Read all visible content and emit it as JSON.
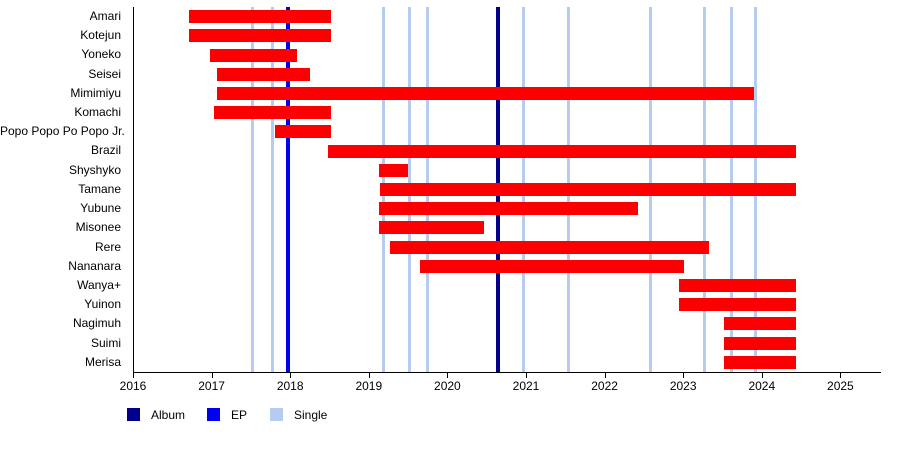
{
  "legend": {
    "items": [
      {
        "label": "Album",
        "color": "#00008B"
      },
      {
        "label": "EP",
        "color": "#0000F0"
      },
      {
        "label": "Single",
        "color": "#B5CBF0"
      }
    ]
  },
  "chart_data": {
    "type": "bar",
    "subtype": "gantt-member-timeline",
    "bar_color": "#FB0000",
    "xlim": [
      2016,
      2025.5
    ],
    "x_ticks": [
      "2016",
      "2017",
      "2018",
      "2019",
      "2020",
      "2021",
      "2022",
      "2023",
      "2024",
      "2025"
    ],
    "grid": "off",
    "legend_position": "bottom-left",
    "members": [
      {
        "name": "Amari",
        "start": 2016.7,
        "end": 2018.51
      },
      {
        "name": "Kotejun",
        "start": 2016.7,
        "end": 2018.51
      },
      {
        "name": "Yoneko",
        "start": 2016.97,
        "end": 2018.07
      },
      {
        "name": "Seisei",
        "start": 2017.05,
        "end": 2018.24
      },
      {
        "name": "Mimimiyu",
        "start": 2017.05,
        "end": 2023.89
      },
      {
        "name": "Komachi",
        "start": 2017.02,
        "end": 2018.51
      },
      {
        "name": "Popo Popo Po Popo Jr.",
        "start": 2017.79,
        "end": 2018.51
      },
      {
        "name": "Brazil",
        "start": 2018.47,
        "end": 2024.42
      },
      {
        "name": "Shyshyko",
        "start": 2019.12,
        "end": 2019.49
      },
      {
        "name": "Tamane",
        "start": 2019.13,
        "end": 2024.42
      },
      {
        "name": "Yubune",
        "start": 2019.12,
        "end": 2022.41
      },
      {
        "name": "Misonee",
        "start": 2019.12,
        "end": 2020.45
      },
      {
        "name": "Rere",
        "start": 2019.26,
        "end": 2023.31
      },
      {
        "name": "Nananara",
        "start": 2019.64,
        "end": 2023.0
      },
      {
        "name": "Wanya+",
        "start": 2022.93,
        "end": 2024.42
      },
      {
        "name": "Yuinon",
        "start": 2022.93,
        "end": 2024.42
      },
      {
        "name": "Nagimuh",
        "start": 2023.5,
        "end": 2024.42
      },
      {
        "name": "Suimi",
        "start": 2023.5,
        "end": 2024.42
      },
      {
        "name": "Merisa",
        "start": 2023.5,
        "end": 2024.42
      }
    ],
    "releases": {
      "album": [
        2020.63
      ],
      "ep": [
        2017.96
      ],
      "single": [
        2017.51,
        2017.76,
        2019.18,
        2019.51,
        2019.74,
        2020.95,
        2021.53,
        2022.57,
        2023.26,
        2023.6,
        2023.91
      ]
    }
  }
}
